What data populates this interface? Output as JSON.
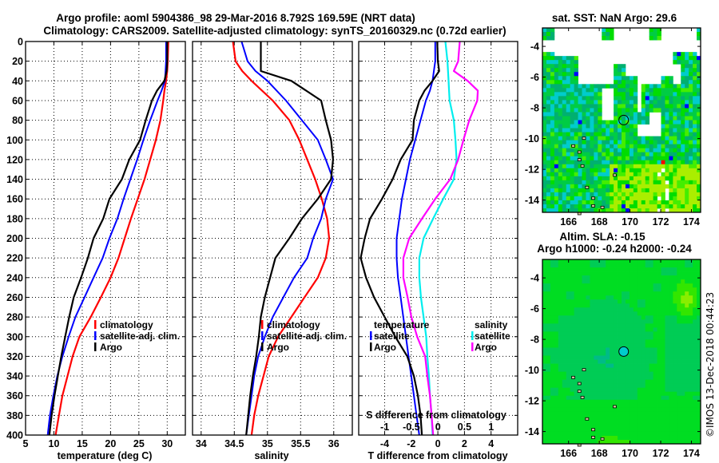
{
  "title_line1": "Argo profile: aoml 5904386_98 29-Mar-2016 8.792S 169.59E (NRT data)",
  "title_line2": "Climatology: CARS2009. Satellite-adjusted climatology: synTS_20160329.nc (0.72d earlier)",
  "credit": "©IMOS 13-Dec-2018 00:44:23",
  "colors": {
    "climatology": "#ff0000",
    "satellite": "#0000ff",
    "argo": "#000000",
    "sal_satellite": "#00eeee",
    "sal_argo": "#ff00ff"
  },
  "chart_data": [
    {
      "type": "line",
      "name": "temperature-profile",
      "xlabel": "temperature (deg C)",
      "ylabel": "",
      "xlim": [
        5,
        33.2
      ],
      "ylim": [
        400,
        0
      ],
      "xticks": [
        5,
        10,
        15,
        20,
        25,
        30
      ],
      "yticks": [
        0,
        20,
        40,
        60,
        80,
        100,
        120,
        140,
        160,
        180,
        200,
        220,
        240,
        260,
        280,
        300,
        320,
        340,
        360,
        380,
        400
      ],
      "grid": true,
      "legend_placement": "center-right",
      "depth": [
        0,
        20,
        30,
        40,
        50,
        60,
        80,
        100,
        120,
        140,
        160,
        180,
        200,
        220,
        240,
        260,
        280,
        300,
        320,
        340,
        360,
        380,
        400
      ],
      "series": [
        {
          "name": "climatology",
          "color_key": "climatology",
          "values": [
            30.2,
            30.1,
            30.0,
            29.8,
            29.5,
            29.3,
            28.8,
            28.0,
            27.0,
            26.0,
            24.8,
            23.6,
            22.5,
            21.4,
            20.0,
            18.3,
            16.5,
            14.5,
            13.3,
            12.4,
            11.5,
            10.9,
            10.3
          ]
        },
        {
          "name": "satellite-adj. clim.",
          "color_key": "satellite",
          "values": [
            29.8,
            29.8,
            29.7,
            29.6,
            29.0,
            28.3,
            27.0,
            25.8,
            24.7,
            23.5,
            22.3,
            21.2,
            19.8,
            18.6,
            17.0,
            15.4,
            13.8,
            12.6,
            11.5,
            10.6,
            9.9,
            9.3,
            8.9
          ]
        },
        {
          "name": "Argo",
          "color_key": "argo",
          "values": [
            30.0,
            30.0,
            29.9,
            29.5,
            28.2,
            27.3,
            26.2,
            25.2,
            23.3,
            22.0,
            19.8,
            18.7,
            17.0,
            16.0,
            14.8,
            13.5,
            12.7,
            12.0,
            11.3,
            10.7,
            10.1,
            9.6,
            9.2
          ]
        }
      ]
    },
    {
      "type": "line",
      "name": "salinity-profile",
      "xlabel": "salinity",
      "ylabel": "",
      "xlim": [
        33.87,
        36.28
      ],
      "ylim": [
        400,
        0
      ],
      "xticks": [
        34,
        34.5,
        35,
        35.5,
        36
      ],
      "grid": true,
      "legend_placement": "center-right",
      "depth": [
        0,
        20,
        30,
        40,
        60,
        80,
        100,
        120,
        140,
        160,
        180,
        200,
        220,
        240,
        260,
        280,
        300,
        320,
        340,
        360,
        380,
        400
      ],
      "series": [
        {
          "name": "climatology",
          "color_key": "climatology",
          "values": [
            34.48,
            34.52,
            34.62,
            34.76,
            35.08,
            35.33,
            35.48,
            35.6,
            35.72,
            35.82,
            35.9,
            35.93,
            35.88,
            35.76,
            35.56,
            35.36,
            35.16,
            35.02,
            34.94,
            34.86,
            34.8,
            34.76
          ]
        },
        {
          "name": "satellite-adj. clim.",
          "color_key": "satellite",
          "values": [
            34.61,
            34.7,
            34.82,
            35.0,
            35.28,
            35.52,
            35.76,
            35.88,
            35.99,
            35.88,
            35.81,
            35.69,
            35.6,
            35.4,
            35.24,
            35.08,
            34.96,
            34.86,
            34.8,
            34.76,
            34.72,
            34.68
          ]
        },
        {
          "name": "Argo",
          "color_key": "argo",
          "values": [
            34.9,
            34.9,
            34.9,
            35.36,
            35.81,
            35.88,
            35.96,
            35.99,
            35.96,
            35.76,
            35.52,
            35.33,
            35.12,
            35.04,
            34.96,
            34.9,
            34.87,
            34.83,
            34.78,
            34.74,
            34.71,
            34.68
          ]
        }
      ]
    },
    {
      "type": "line",
      "name": "difference-profile",
      "xlabel": "T difference from climatology",
      "x2label": "S difference from climatology",
      "ylabel": "",
      "xlim": [
        -5.95,
        6.0
      ],
      "x2lim": [
        -1.49,
        1.5
      ],
      "ylim": [
        400,
        0
      ],
      "xticks": [
        -4,
        -2,
        0,
        2,
        4
      ],
      "x2ticks": [
        -1,
        -0.5,
        0,
        0.5,
        1
      ],
      "grid": true,
      "legend": {
        "temperature_title": "temperature",
        "salinity_title": "salinity",
        "placement": "center"
      },
      "depth": [
        0,
        20,
        30,
        40,
        50,
        60,
        80,
        100,
        120,
        140,
        160,
        180,
        200,
        220,
        240,
        260,
        280,
        300,
        320,
        340,
        360,
        380,
        400
      ],
      "series": [
        {
          "name": "satellite",
          "group": "temperature",
          "axis": "T",
          "color_key": "satellite",
          "values": [
            -0.2,
            -0.2,
            -0.3,
            -0.4,
            -0.6,
            -0.9,
            -1.3,
            -1.7,
            -2.1,
            -2.4,
            -2.7,
            -2.9,
            -3.1,
            -3.1,
            -3.0,
            -2.8,
            -2.6,
            -2.4,
            -2.2,
            -2.0,
            -1.8,
            -1.6,
            -1.4
          ]
        },
        {
          "name": "Argo",
          "group": "temperature",
          "axis": "T",
          "color_key": "argo",
          "values": [
            -0.05,
            0.0,
            0.1,
            -0.4,
            -1.0,
            -1.4,
            -1.8,
            -1.9,
            -2.8,
            -3.4,
            -4.2,
            -5.1,
            -5.5,
            -5.8,
            -5.4,
            -4.8,
            -4.0,
            -3.2,
            -2.3,
            -1.8,
            -1.5,
            -1.3,
            -1.2
          ]
        },
        {
          "name": "satellite",
          "group": "salinity",
          "axis": "S",
          "color_key": "sal_satellite",
          "values": [
            0.14,
            0.18,
            0.19,
            0.2,
            0.21,
            0.22,
            0.3,
            0.33,
            0.35,
            0.3,
            0.1,
            -0.09,
            -0.27,
            -0.35,
            -0.35,
            -0.32,
            -0.27,
            -0.22,
            -0.2,
            -0.17,
            -0.15,
            -0.12,
            -0.1
          ]
        },
        {
          "name": "Argo",
          "group": "salinity",
          "axis": "S",
          "color_key": "sal_argo",
          "values": [
            0.41,
            0.38,
            0.3,
            0.56,
            0.75,
            0.74,
            0.59,
            0.48,
            0.38,
            0.23,
            -0.05,
            -0.3,
            -0.54,
            -0.65,
            -0.65,
            -0.57,
            -0.5,
            -0.39,
            -0.24,
            -0.2,
            -0.15,
            -0.12,
            -0.09
          ]
        }
      ]
    },
    {
      "type": "heatmap",
      "name": "sst-map",
      "title": "sat. SST: NaN Argo: 29.6",
      "xlim": [
        164.3,
        174.6
      ],
      "ylim": [
        -14.8,
        -2.8
      ],
      "xticks": [
        166,
        168,
        170,
        172,
        174
      ],
      "yticks": [
        -4,
        -6,
        -8,
        -10,
        -12,
        -14
      ],
      "marker": {
        "lon": 169.59,
        "lat": -8.792
      },
      "palette": [
        "#0000ff",
        "#00cccc",
        "#00b070",
        "#00cc44",
        "#00dd00",
        "#44ee00",
        "#aaee00",
        "#ff0000"
      ],
      "missing_color": "#ffffff"
    },
    {
      "type": "heatmap",
      "name": "sla-map",
      "title_line1": "Altim. SLA: -0.15",
      "title_line2": "Argo h1000: -0.24 h2000: -0.24",
      "xlim": [
        164.3,
        174.6
      ],
      "ylim": [
        -14.8,
        -2.8
      ],
      "xticks": [
        166,
        168,
        170,
        172,
        174
      ],
      "yticks": [
        -4,
        -6,
        -8,
        -10,
        -12,
        -14
      ],
      "marker": {
        "lon": 169.59,
        "lat": -8.792
      },
      "palette": [
        "#00cccc",
        "#00bb88",
        "#00cc55",
        "#00dd22",
        "#33e600",
        "#88ee00"
      ]
    }
  ]
}
